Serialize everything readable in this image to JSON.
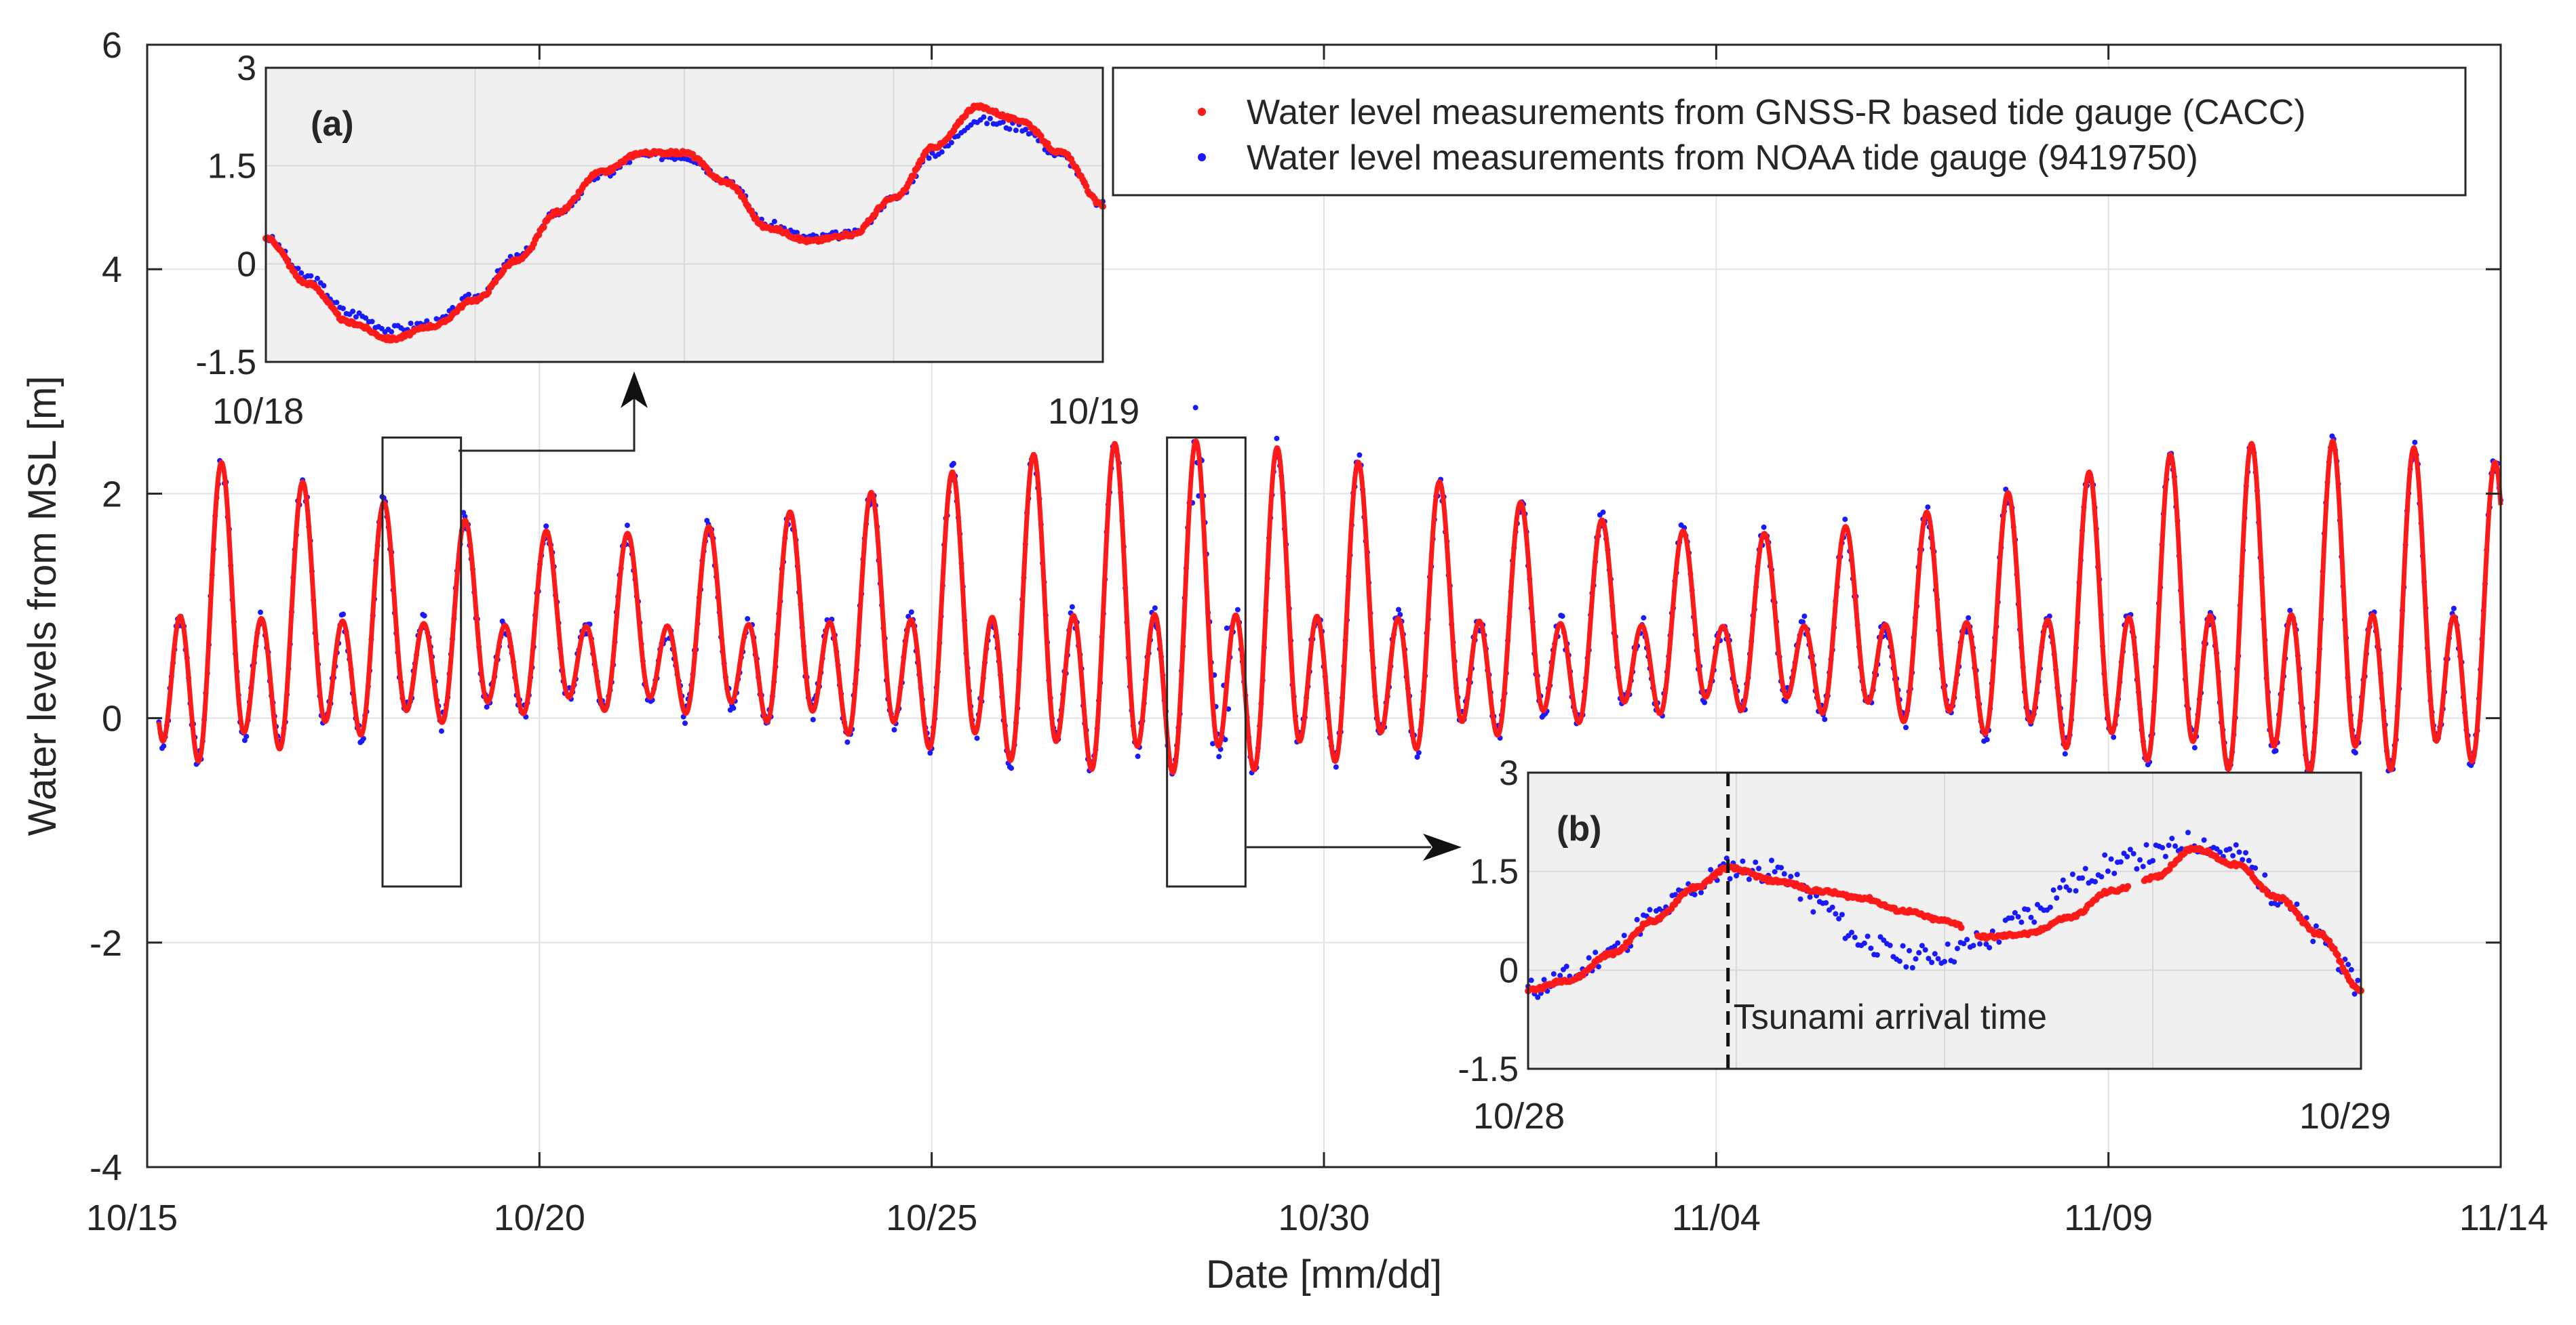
{
  "colors": {
    "gnss": "#ff1a1a",
    "noaa": "#1a1aff",
    "grid": "#e3e3e3",
    "inset_bg": "#f0f0f0",
    "axis": "#262626"
  },
  "chart_data": [
    {
      "id": "main",
      "type": "scatter",
      "xlabel": "Date [mm/dd]",
      "ylabel": "Water levels from MSL [m]",
      "xlim": [
        0,
        30
      ],
      "ylim": [
        -4,
        6
      ],
      "xticks": [
        0,
        5,
        10,
        15,
        20,
        25,
        30
      ],
      "xtick_labels": [
        "10/15",
        "10/20",
        "10/25",
        "10/30",
        "11/04",
        "11/09",
        "11/14"
      ],
      "yticks": [
        -4,
        -2,
        0,
        2,
        4,
        6
      ],
      "ytick_labels": [
        "-4",
        "-2",
        "0",
        "2",
        "4",
        "6"
      ],
      "grid": true,
      "series": [
        {
          "name": "Water level measurements from GNSS-R based tide gauge (CACC)",
          "marker": "dot",
          "color": "#ff1a1a"
        },
        {
          "name": "Water level measurements from NOAA tide gauge (9419750)",
          "marker": "dot",
          "color": "#1a1aff"
        }
      ],
      "tide_model": {
        "period_days": 1.0,
        "mean": 0.7,
        "amplitude_range": [
          0.8,
          1.5
        ],
        "record_start_day": 0.15,
        "record_end_day": 30.0
      },
      "highlight_boxes": [
        {
          "x": [
            3.0,
            4.0
          ],
          "y": [
            -1.5,
            2.5
          ]
        },
        {
          "x": [
            13.0,
            14.0
          ],
          "y": [
            -1.5,
            2.5
          ]
        }
      ]
    },
    {
      "id": "inset_a",
      "type": "scatter",
      "label": "(a)",
      "xlim": [
        0,
        1
      ],
      "ylim": [
        -1.5,
        3
      ],
      "yticks": [
        -1.5,
        0,
        1.5,
        3
      ],
      "ytick_labels": [
        "-1.5",
        "0",
        "1.5",
        "3"
      ],
      "xtick_labels": [
        "10/18",
        "10/19"
      ],
      "grid": true,
      "x": [
        0.0,
        0.05,
        0.1,
        0.15,
        0.2,
        0.25,
        0.3,
        0.35,
        0.4,
        0.45,
        0.5,
        0.55,
        0.6,
        0.65,
        0.7,
        0.75,
        0.8,
        0.85,
        0.9,
        0.95,
        1.0
      ],
      "gnss": [
        0.4,
        -0.3,
        -0.9,
        -1.15,
        -0.95,
        -0.55,
        0.05,
        0.8,
        1.4,
        1.7,
        1.7,
        1.25,
        0.55,
        0.35,
        0.45,
        1.0,
        1.8,
        2.4,
        2.2,
        1.7,
        0.9
      ],
      "noaa": [
        0.4,
        -0.2,
        -0.75,
        -1.0,
        -0.9,
        -0.5,
        0.1,
        0.8,
        1.35,
        1.65,
        1.65,
        1.3,
        0.6,
        0.4,
        0.45,
        1.0,
        1.7,
        2.2,
        2.1,
        1.65,
        0.9
      ]
    },
    {
      "id": "inset_b",
      "type": "scatter",
      "label": "(b)",
      "xlim": [
        0,
        1
      ],
      "ylim": [
        -1.5,
        3
      ],
      "yticks": [
        -1.5,
        0,
        1.5,
        3
      ],
      "ytick_labels": [
        "-1.5",
        "0",
        "1.5",
        "3"
      ],
      "xtick_labels": [
        "10/28",
        "10/29"
      ],
      "grid": true,
      "annotation": {
        "text": "Tsunami arrival time",
        "x": 0.24
      },
      "x": [
        0.0,
        0.05,
        0.1,
        0.15,
        0.2,
        0.24,
        0.3,
        0.35,
        0.4,
        0.45,
        0.5,
        0.55,
        0.6,
        0.65,
        0.7,
        0.75,
        0.8,
        0.85,
        0.9,
        0.95,
        1.0
      ],
      "gnss": [
        -0.3,
        -0.15,
        0.25,
        0.75,
        1.25,
        1.55,
        1.35,
        1.2,
        1.1,
        0.9,
        0.75,
        0.5,
        0.55,
        0.8,
        1.2,
        1.4,
        1.85,
        1.6,
        1.1,
        0.55,
        -0.3
      ],
      "noaa": [
        -0.3,
        -0.1,
        0.3,
        0.8,
        1.25,
        1.55,
        1.5,
        1.0,
        0.45,
        0.2,
        0.25,
        0.45,
        0.85,
        1.3,
        1.6,
        1.75,
        1.95,
        1.75,
        1.15,
        0.5,
        -0.25
      ]
    }
  ]
}
